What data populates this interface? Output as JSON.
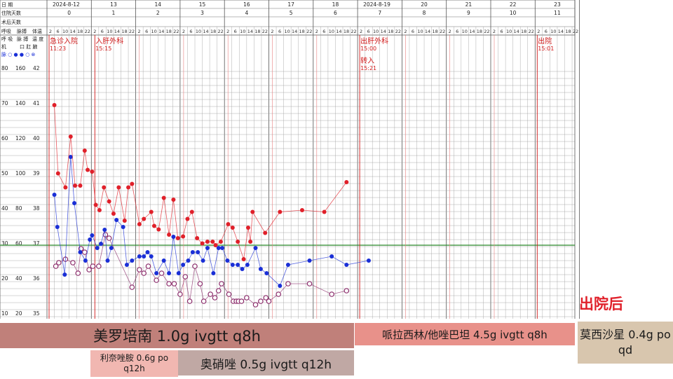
{
  "chart_data": {
    "type": "line",
    "header": {
      "date_label": "日  期",
      "day_label": "住院天数",
      "postop_label": "术后天数",
      "dates": [
        "2024-8-12",
        "13",
        "14",
        "15",
        "16",
        "17",
        "18",
        "2024-8-19",
        "20",
        "21",
        "22",
        "23"
      ],
      "hosp_days": [
        "0",
        "1",
        "2",
        "3",
        "4",
        "5",
        "6",
        "7",
        "8",
        "9",
        "10",
        "11"
      ],
      "hour_ticks": [
        "2",
        "6",
        "10",
        "14",
        "18",
        "22"
      ]
    },
    "left_legend": {
      "col_labels": [
        "呼吸",
        "脉搏",
        "体温"
      ],
      "col_sub": [
        "呼 吸",
        "脉 搏",
        "温 度"
      ],
      "symbols_label": "脉 ○ ● ● ○ ⊗",
      "extra_label": "口 肛 腋",
      "extra2": "机"
    },
    "y_axes": {
      "resp": [
        "80",
        "70",
        "60",
        "50",
        "40",
        "30",
        "20",
        "10"
      ],
      "pulse": [
        "160",
        "140",
        "120",
        "100",
        "80",
        "60",
        "40",
        "20"
      ],
      "temp": [
        "42",
        "41",
        "40",
        "39",
        "38",
        "37",
        "36",
        "35"
      ]
    },
    "events": [
      {
        "day": 0,
        "slot": 0,
        "label": "急诊入院",
        "time": "11:23"
      },
      {
        "day": 1,
        "slot": 0,
        "label": "入肝外科",
        "time": "15:15"
      },
      {
        "day": 7,
        "slot": 0,
        "label": "出肝外科",
        "time": "15:00"
      },
      {
        "day": 7,
        "slot": 0,
        "label": "转入",
        "time": "15:21",
        "row": 2
      },
      {
        "day": 11,
        "slot": 0,
        "label": "出院",
        "time": "15:01"
      }
    ],
    "baseline_temp": 37,
    "series": [
      {
        "key": "pulse",
        "values": [
          [
            0.5,
            140
          ],
          [
            0.75,
            101
          ],
          [
            1.25,
            93
          ],
          [
            1.6,
            122
          ],
          [
            1.9,
            94
          ],
          [
            2.25,
            94
          ],
          [
            2.55,
            114
          ],
          [
            2.75,
            103
          ],
          [
            3.05,
            102
          ],
          [
            3.3,
            83
          ],
          [
            3.55,
            80
          ],
          [
            3.85,
            93
          ],
          [
            4.2,
            85
          ],
          [
            4.5,
            78
          ],
          [
            4.85,
            93
          ],
          [
            5.25,
            74
          ],
          [
            5.5,
            93
          ],
          [
            5.75,
            95
          ],
          [
            6.25,
            72
          ],
          [
            6.55,
            75
          ],
          [
            7.05,
            79
          ],
          [
            7.25,
            71
          ],
          [
            7.55,
            69
          ],
          [
            7.9,
            87
          ],
          [
            8.25,
            66
          ],
          [
            8.55,
            86
          ],
          [
            8.85,
            64
          ],
          [
            9.2,
            65
          ],
          [
            9.5,
            75
          ],
          [
            9.8,
            79
          ],
          [
            10.15,
            64
          ],
          [
            10.5,
            61
          ],
          [
            10.85,
            62
          ],
          [
            11.2,
            62
          ],
          [
            11.4,
            60
          ],
          [
            11.75,
            62
          ],
          [
            12.25,
            72
          ],
          [
            12.55,
            70
          ],
          [
            12.9,
            62
          ],
          [
            13.3,
            52
          ],
          [
            13.6,
            70
          ],
          [
            13.75,
            62
          ],
          [
            13.9,
            79
          ],
          [
            14.75,
            67
          ],
          [
            15.75,
            79
          ],
          [
            17.25,
            80
          ],
          [
            18.75,
            79
          ],
          [
            20.25,
            96
          ]
        ]
      },
      {
        "key": "temp",
        "values": [
          [
            0.5,
            38.44
          ],
          [
            0.7,
            37.52
          ],
          [
            1.2,
            36.16
          ],
          [
            1.6,
            39.52
          ],
          [
            1.85,
            38.2
          ],
          [
            2.25,
            36.8
          ],
          [
            2.6,
            36.56
          ],
          [
            2.9,
            37.16
          ],
          [
            3.05,
            37.28
          ],
          [
            3.4,
            36.92
          ],
          [
            3.65,
            37.04
          ],
          [
            3.9,
            37.44
          ],
          [
            4.1,
            36.56
          ],
          [
            4.35,
            36.92
          ],
          [
            4.7,
            37.72
          ],
          [
            5.15,
            37.52
          ],
          [
            5.4,
            36.44
          ],
          [
            5.75,
            36.56
          ],
          [
            6.25,
            36.68
          ],
          [
            6.55,
            36.68
          ],
          [
            6.8,
            36.8
          ],
          [
            7.05,
            36.68
          ],
          [
            7.4,
            36.2
          ],
          [
            7.9,
            36.56
          ],
          [
            8.25,
            36.2
          ],
          [
            8.55,
            37.24
          ],
          [
            8.9,
            36.2
          ],
          [
            9.2,
            36.44
          ],
          [
            9.55,
            36.56
          ],
          [
            9.85,
            36.8
          ],
          [
            10.2,
            36.8
          ],
          [
            10.55,
            36.56
          ],
          [
            10.85,
            36.92
          ],
          [
            11.25,
            36.2
          ],
          [
            11.6,
            36.92
          ],
          [
            11.85,
            36.92
          ],
          [
            12.2,
            36.56
          ],
          [
            12.55,
            36.44
          ],
          [
            12.9,
            36.44
          ],
          [
            13.2,
            36.32
          ],
          [
            13.55,
            36.44
          ],
          [
            14.1,
            36.92
          ],
          [
            14.45,
            36.32
          ],
          [
            14.85,
            36.2
          ],
          [
            15.75,
            35.84
          ],
          [
            16.3,
            36.44
          ],
          [
            17.75,
            36.56
          ],
          [
            19.25,
            36.68
          ],
          [
            20.25,
            36.44
          ],
          [
            21.75,
            36.56
          ]
        ]
      },
      {
        "key": "resp",
        "values": [
          [
            0.6,
            24
          ],
          [
            0.8,
            25
          ],
          [
            1.25,
            26
          ],
          [
            1.75,
            25
          ],
          [
            2.1,
            22
          ],
          [
            2.3,
            29
          ],
          [
            2.55,
            28
          ],
          [
            2.85,
            23
          ],
          [
            3.1,
            24
          ],
          [
            3.5,
            24
          ],
          [
            3.95,
            33
          ],
          [
            4.2,
            32
          ],
          [
            5.75,
            18
          ],
          [
            6.25,
            23
          ],
          [
            6.55,
            22
          ],
          [
            6.85,
            24
          ],
          [
            7.4,
            20
          ],
          [
            7.75,
            22
          ],
          [
            8.25,
            19
          ],
          [
            8.6,
            19
          ],
          [
            9.0,
            16
          ],
          [
            9.35,
            21
          ],
          [
            9.65,
            14
          ],
          [
            10.0,
            24
          ],
          [
            10.35,
            19
          ],
          [
            10.6,
            14
          ],
          [
            11.05,
            16
          ],
          [
            11.35,
            15
          ],
          [
            11.6,
            17
          ],
          [
            11.8,
            19
          ],
          [
            12.3,
            16
          ],
          [
            12.6,
            14
          ],
          [
            12.8,
            14
          ],
          [
            12.95,
            14
          ],
          [
            13.15,
            14
          ],
          [
            13.5,
            15
          ],
          [
            14.1,
            13
          ],
          [
            14.45,
            14
          ],
          [
            14.8,
            15
          ],
          [
            15.0,
            14
          ],
          [
            15.65,
            16
          ],
          [
            16.3,
            19
          ],
          [
            17.75,
            19
          ],
          [
            19.25,
            16
          ],
          [
            20.25,
            17
          ]
        ]
      }
    ],
    "annotation": "出院后",
    "medications": [
      {
        "text": "美罗培南 1.0g ivgtt q8h",
        "color": "#c0807a"
      },
      {
        "text": "哌拉西林/他唑巴坦 4.5g ivgtt q8h",
        "color": "#e8918a"
      },
      {
        "text": "莫西沙星 0.4g po qd",
        "color": "#d8c6ae"
      },
      {
        "text": "利奈唑胺 0.6g po q12h",
        "color": "#f1b7b1"
      },
      {
        "text": "奥硝唑 0.5g ivgtt q12h",
        "color": "#c0a8a4"
      }
    ],
    "colors": {
      "pulse": "#e0202a",
      "temp": "#1a2fd6",
      "resp": "#8a2b6a",
      "day_line": "#d01818",
      "baseline": "#2b8a2b",
      "grid": "#9a9a9a"
    }
  }
}
